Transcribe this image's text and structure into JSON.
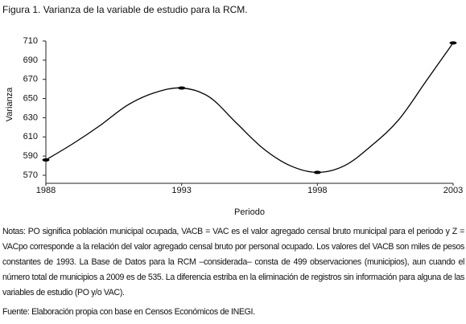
{
  "chart_data": {
    "type": "line",
    "title": "Figura 1. Varianza de la variable de estudio para la RCM.",
    "x_label": "Periodo",
    "y_label": "Varianza",
    "x": [
      1988,
      1989,
      1990,
      1991,
      1992,
      1993,
      1994,
      1995,
      1996,
      1997,
      1998,
      1999,
      2000,
      2001,
      2002,
      2003
    ],
    "series": [
      {
        "color": "#000000",
        "values": [
          586,
          603,
          622,
          643,
          656,
          661,
          652,
          625,
          598,
          580,
          573,
          580,
          601,
          628,
          668,
          708
        ]
      }
    ],
    "xlim": [
      1988,
      2003
    ],
    "xticks": [
      1988,
      1993,
      1998,
      2003
    ],
    "ylim": [
      570,
      710
    ],
    "yticks": [
      570,
      590,
      610,
      630,
      650,
      670,
      690,
      710
    ],
    "grid": false
  },
  "notes": "Notas: PO significa población municipal ocupada, VACB = VAC es el valor agregado censal bruto municipal para el periodo y Z = VACpo corresponde a la relación del valor agregado censal bruto por personal ocupado.  Los valores del VACB son miles de pesos constantes de 1993. La Base de Datos para la RCM –considerada– consta de 499 observaciones (municipios), aun cuando el número total de municipios a 2009 es de 535. La diferencia estriba en la eliminación de registros sin información para alguna de las variables de estudio (PO y/o VAC).",
  "source": "Fuente: Elaboración propia con base en Censos Económicos de INEGI."
}
